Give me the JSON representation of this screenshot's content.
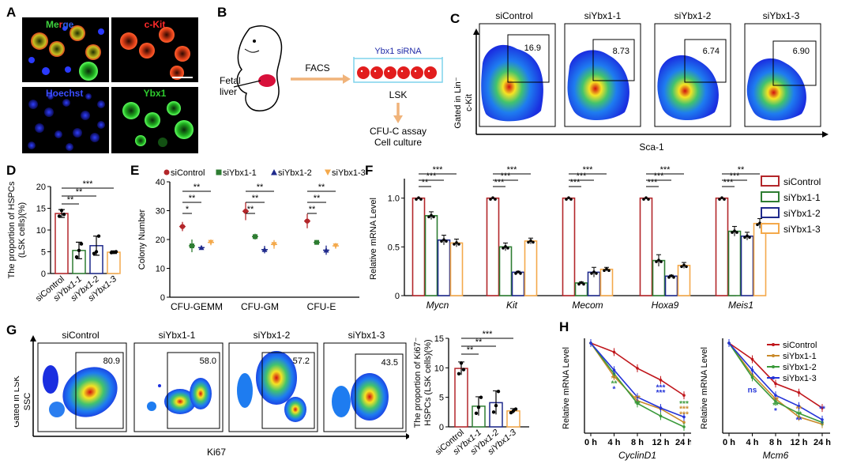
{
  "panels": {
    "A": "A",
    "B": "B",
    "C": "C",
    "D": "D",
    "E": "E",
    "F": "F",
    "G": "G",
    "H": "H"
  },
  "colors": {
    "siControl": "#b3262a",
    "siYbx1_1": "#2e7d32",
    "siYbx1_2": "#1f2a8c",
    "siYbx1_3": "#f4a94b",
    "h_siControl": "#c0161b",
    "h_siYbx1_1": "#c98a2a",
    "h_siYbx1_2": "#3a9a3a",
    "h_siYbx1_3": "#2434d8"
  },
  "panelA": {
    "tiles": [
      {
        "title_parts": [
          "Me",
          "r",
          "ge"
        ],
        "title_colors": [
          "#3fd13f",
          "#e83535",
          "#2d5be8"
        ]
      },
      {
        "title": "c-Kit",
        "color": "#ff2a2a"
      },
      {
        "title": "Hoechst",
        "color": "#3a4dff"
      },
      {
        "title": "Ybx1",
        "color": "#2ecc2e"
      }
    ]
  },
  "panelB": {
    "fetal_liver": "Fetal\nliver",
    "facs": "FACS",
    "sirna": "Ybx1 siRNA",
    "lsk": "LSK",
    "assay": "CFU-C assay",
    "culture": "Cell culture"
  },
  "panelC": {
    "titles": [
      "siControl",
      "siYbx1-1",
      "siYbx1-2",
      "siYbx1-3"
    ],
    "values": [
      "16.9",
      "8.73",
      "6.74",
      "6.90"
    ],
    "y_label_1": "Gated in Lin⁻",
    "y_label_2": "c-Kit",
    "x_label": "Sca-1"
  },
  "panelG": {
    "titles": [
      "siControl",
      "siYbx1-1",
      "siYbx1-2",
      "siYbx1-3"
    ],
    "values": [
      "80.9",
      "58.0",
      "57.2",
      "43.5"
    ],
    "y_label_1": "Gated in LSK",
    "y_label_2": "SSC",
    "x_label": "Ki67"
  },
  "chart_data": [
    {
      "id": "D",
      "type": "bar",
      "categories": [
        "siControl",
        "siYbx1-1",
        "siYbx1-2",
        "siYbx1-3"
      ],
      "values": [
        13.8,
        5.3,
        6.4,
        4.9
      ],
      "errors": [
        0.9,
        1.9,
        2.2,
        0.3
      ],
      "points": [
        [
          13.2,
          14.5,
          13.6
        ],
        [
          3.8,
          5.3,
          6.8
        ],
        [
          4.6,
          5.0,
          8.6
        ],
        [
          4.8,
          4.9,
          5.0
        ]
      ],
      "ylabel": "The proportion of HSPCs\n(LSK cells)(%)",
      "ylim": [
        0,
        20
      ],
      "yticks": [
        0,
        5,
        10,
        15,
        20
      ],
      "significance": [
        "**",
        "**",
        "***"
      ]
    },
    {
      "id": "E",
      "type": "scatter",
      "groups": [
        "CFU-GEMM",
        "CFU-GM",
        "CFU-E"
      ],
      "series": [
        {
          "name": "siControl",
          "values": [
            24.5,
            29.8,
            26.4
          ],
          "errors": [
            1.6,
            3.1,
            2.5
          ]
        },
        {
          "name": "siYbx1-1",
          "values": [
            17.8,
            21.0,
            19.0
          ],
          "errors": [
            2.2,
            1.0,
            0.8
          ]
        },
        {
          "name": "siYbx1-2",
          "values": [
            17.2,
            16.5,
            16.3
          ],
          "errors": [
            0.6,
            1.3,
            1.6
          ]
        },
        {
          "name": "siYbx1-3",
          "values": [
            19.0,
            18.3,
            17.8
          ],
          "errors": [
            1.0,
            1.5,
            1.0
          ]
        }
      ],
      "ylabel": "Colony Number",
      "ylim": [
        0,
        40
      ],
      "yticks": [
        0,
        10,
        20,
        30,
        40
      ],
      "significance": [
        [
          "*",
          "**",
          "**"
        ],
        [
          "**",
          "**",
          "**"
        ],
        [
          "**",
          "**",
          "**"
        ]
      ]
    },
    {
      "id": "F",
      "type": "bar",
      "genes": [
        "Mycn",
        "Kit",
        "Mecom",
        "Hoxa9",
        "Meis1"
      ],
      "series": [
        {
          "name": "siControl",
          "values": [
            1.0,
            1.0,
            1.0,
            1.0,
            1.0
          ]
        },
        {
          "name": "siYbx1-1",
          "values": [
            0.82,
            0.5,
            0.13,
            0.36,
            0.66
          ]
        },
        {
          "name": "siYbx1-2",
          "values": [
            0.57,
            0.24,
            0.24,
            0.2,
            0.61
          ]
        },
        {
          "name": "siYbx1-3",
          "values": [
            0.54,
            0.56,
            0.27,
            0.31,
            0.74
          ]
        }
      ],
      "errors": [
        [
          0,
          0,
          0,
          0,
          0
        ],
        [
          0.04,
          0.04,
          0.01,
          0.06,
          0.05
        ],
        [
          0.05,
          0.01,
          0.05,
          0.01,
          0.04
        ],
        [
          0.04,
          0.03,
          0.02,
          0.03,
          0.05
        ]
      ],
      "ylabel": "Relative mRNA Level",
      "ylim": [
        0,
        1.2
      ],
      "yticks": [
        "0",
        "0.5",
        "1.0"
      ],
      "significance": [
        [
          "**",
          "***",
          "***"
        ],
        [
          "***",
          "***",
          "***"
        ],
        [
          "***",
          "***",
          "***"
        ],
        [
          "***",
          "***",
          "***"
        ],
        [
          "***",
          "***",
          "**"
        ]
      ]
    },
    {
      "id": "G",
      "type": "bar",
      "categories": [
        "siControl",
        "siYbx1-1",
        "siYbx1-2",
        "siYbx1-3"
      ],
      "values": [
        9.9,
        3.5,
        4.1,
        2.7
      ],
      "errors": [
        1.1,
        1.6,
        2.0,
        0.4
      ],
      "points": [
        [
          9.0,
          10.8,
          9.7
        ],
        [
          2.3,
          3.3,
          5.0
        ],
        [
          2.5,
          3.6,
          6.0
        ],
        [
          2.4,
          2.7,
          3.0
        ]
      ],
      "ylabel": "The proportion of Ki67⁻\nHSPCs (LSK cells)(%)",
      "ylim": [
        0,
        15
      ],
      "yticks": [
        0,
        5,
        10,
        15
      ],
      "significance": [
        "**",
        "**",
        "***"
      ]
    },
    {
      "id": "H1",
      "type": "line",
      "x": [
        "0 h",
        "4 h",
        "8 h",
        "12 h",
        "24 h"
      ],
      "xvals": [
        0,
        4,
        8,
        12,
        16
      ],
      "series": [
        {
          "name": "siControl",
          "values": [
            1.0,
            0.9,
            0.72,
            0.59,
            0.42
          ]
        },
        {
          "name": "siYbx1-1",
          "values": [
            1.0,
            0.63,
            0.36,
            0.27,
            0.12
          ]
        },
        {
          "name": "siYbx1-2",
          "values": [
            1.0,
            0.66,
            0.33,
            0.19,
            0.07
          ]
        },
        {
          "name": "siYbx1-3",
          "values": [
            1.0,
            0.7,
            0.4,
            0.28,
            0.18
          ]
        }
      ],
      "ylabel": "Relative mRNA Level",
      "xlabel": "CyclinD1",
      "ylim": [
        0,
        1.0
      ],
      "stars": [
        {
          "x": 4,
          "y": 0.58,
          "t": "**",
          "c": "h_siYbx1_1"
        },
        {
          "x": 4,
          "y": 0.52,
          "t": "**",
          "c": "h_siYbx1_2"
        },
        {
          "x": 4,
          "y": 0.46,
          "t": "*",
          "c": "h_siYbx1_3"
        },
        {
          "x": 8,
          "y": 0.36,
          "t": "**",
          "c": "h_siYbx1_1"
        },
        {
          "x": 8,
          "y": 0.3,
          "t": "**",
          "c": "h_siYbx1_2"
        },
        {
          "x": 12,
          "y": 0.48,
          "t": "***",
          "c": "h_siYbx1_3"
        },
        {
          "x": 12,
          "y": 0.42,
          "t": "***",
          "c": "h_siYbx1_3"
        },
        {
          "x": 16,
          "y": 0.3,
          "t": "***",
          "c": "h_siYbx1_2"
        },
        {
          "x": 16,
          "y": 0.24,
          "t": "***",
          "c": "h_siYbx1_1"
        },
        {
          "x": 16,
          "y": 0.18,
          "t": "***",
          "c": "h_siYbx1_1"
        }
      ]
    },
    {
      "id": "H2",
      "type": "line",
      "x": [
        "0 h",
        "4 h",
        "8 h",
        "12 h",
        "24 h"
      ],
      "xvals": [
        0,
        4,
        8,
        12,
        16
      ],
      "series": [
        {
          "name": "siControl",
          "values": [
            1.0,
            0.82,
            0.55,
            0.45,
            0.28
          ]
        },
        {
          "name": "siYbx1-1",
          "values": [
            1.0,
            0.65,
            0.38,
            0.18,
            0.1
          ]
        },
        {
          "name": "siYbx1-2",
          "values": [
            1.0,
            0.62,
            0.35,
            0.22,
            0.12
          ]
        },
        {
          "name": "siYbx1-3",
          "values": [
            1.0,
            0.7,
            0.42,
            0.3,
            0.15
          ]
        }
      ],
      "ylabel": "Relative mRNA Level",
      "xlabel": "Mcm6",
      "ylim": [
        0,
        1.0
      ],
      "stars": [
        {
          "x": 4,
          "y": 0.45,
          "t": "ns",
          "c": "h_siYbx1_3"
        },
        {
          "x": 8,
          "y": 0.34,
          "t": "**",
          "c": "h_siYbx1_1"
        },
        {
          "x": 8,
          "y": 0.28,
          "t": "**",
          "c": "h_siYbx1_2"
        },
        {
          "x": 8,
          "y": 0.22,
          "t": "*",
          "c": "h_siYbx1_3"
        },
        {
          "x": 12,
          "y": 0.24,
          "t": "**",
          "c": "h_siYbx1_1"
        },
        {
          "x": 12,
          "y": 0.18,
          "t": "**",
          "c": "h_siYbx1_2"
        },
        {
          "x": 12,
          "y": 0.12,
          "t": "**",
          "c": "h_siYbx1_3"
        },
        {
          "x": 16,
          "y": 0.24,
          "t": "**",
          "c": "h_siYbx1_3"
        }
      ],
      "legend": [
        "siControl",
        "siYbx1-1",
        "siYbx1-2",
        "siYbx1-3"
      ]
    }
  ]
}
